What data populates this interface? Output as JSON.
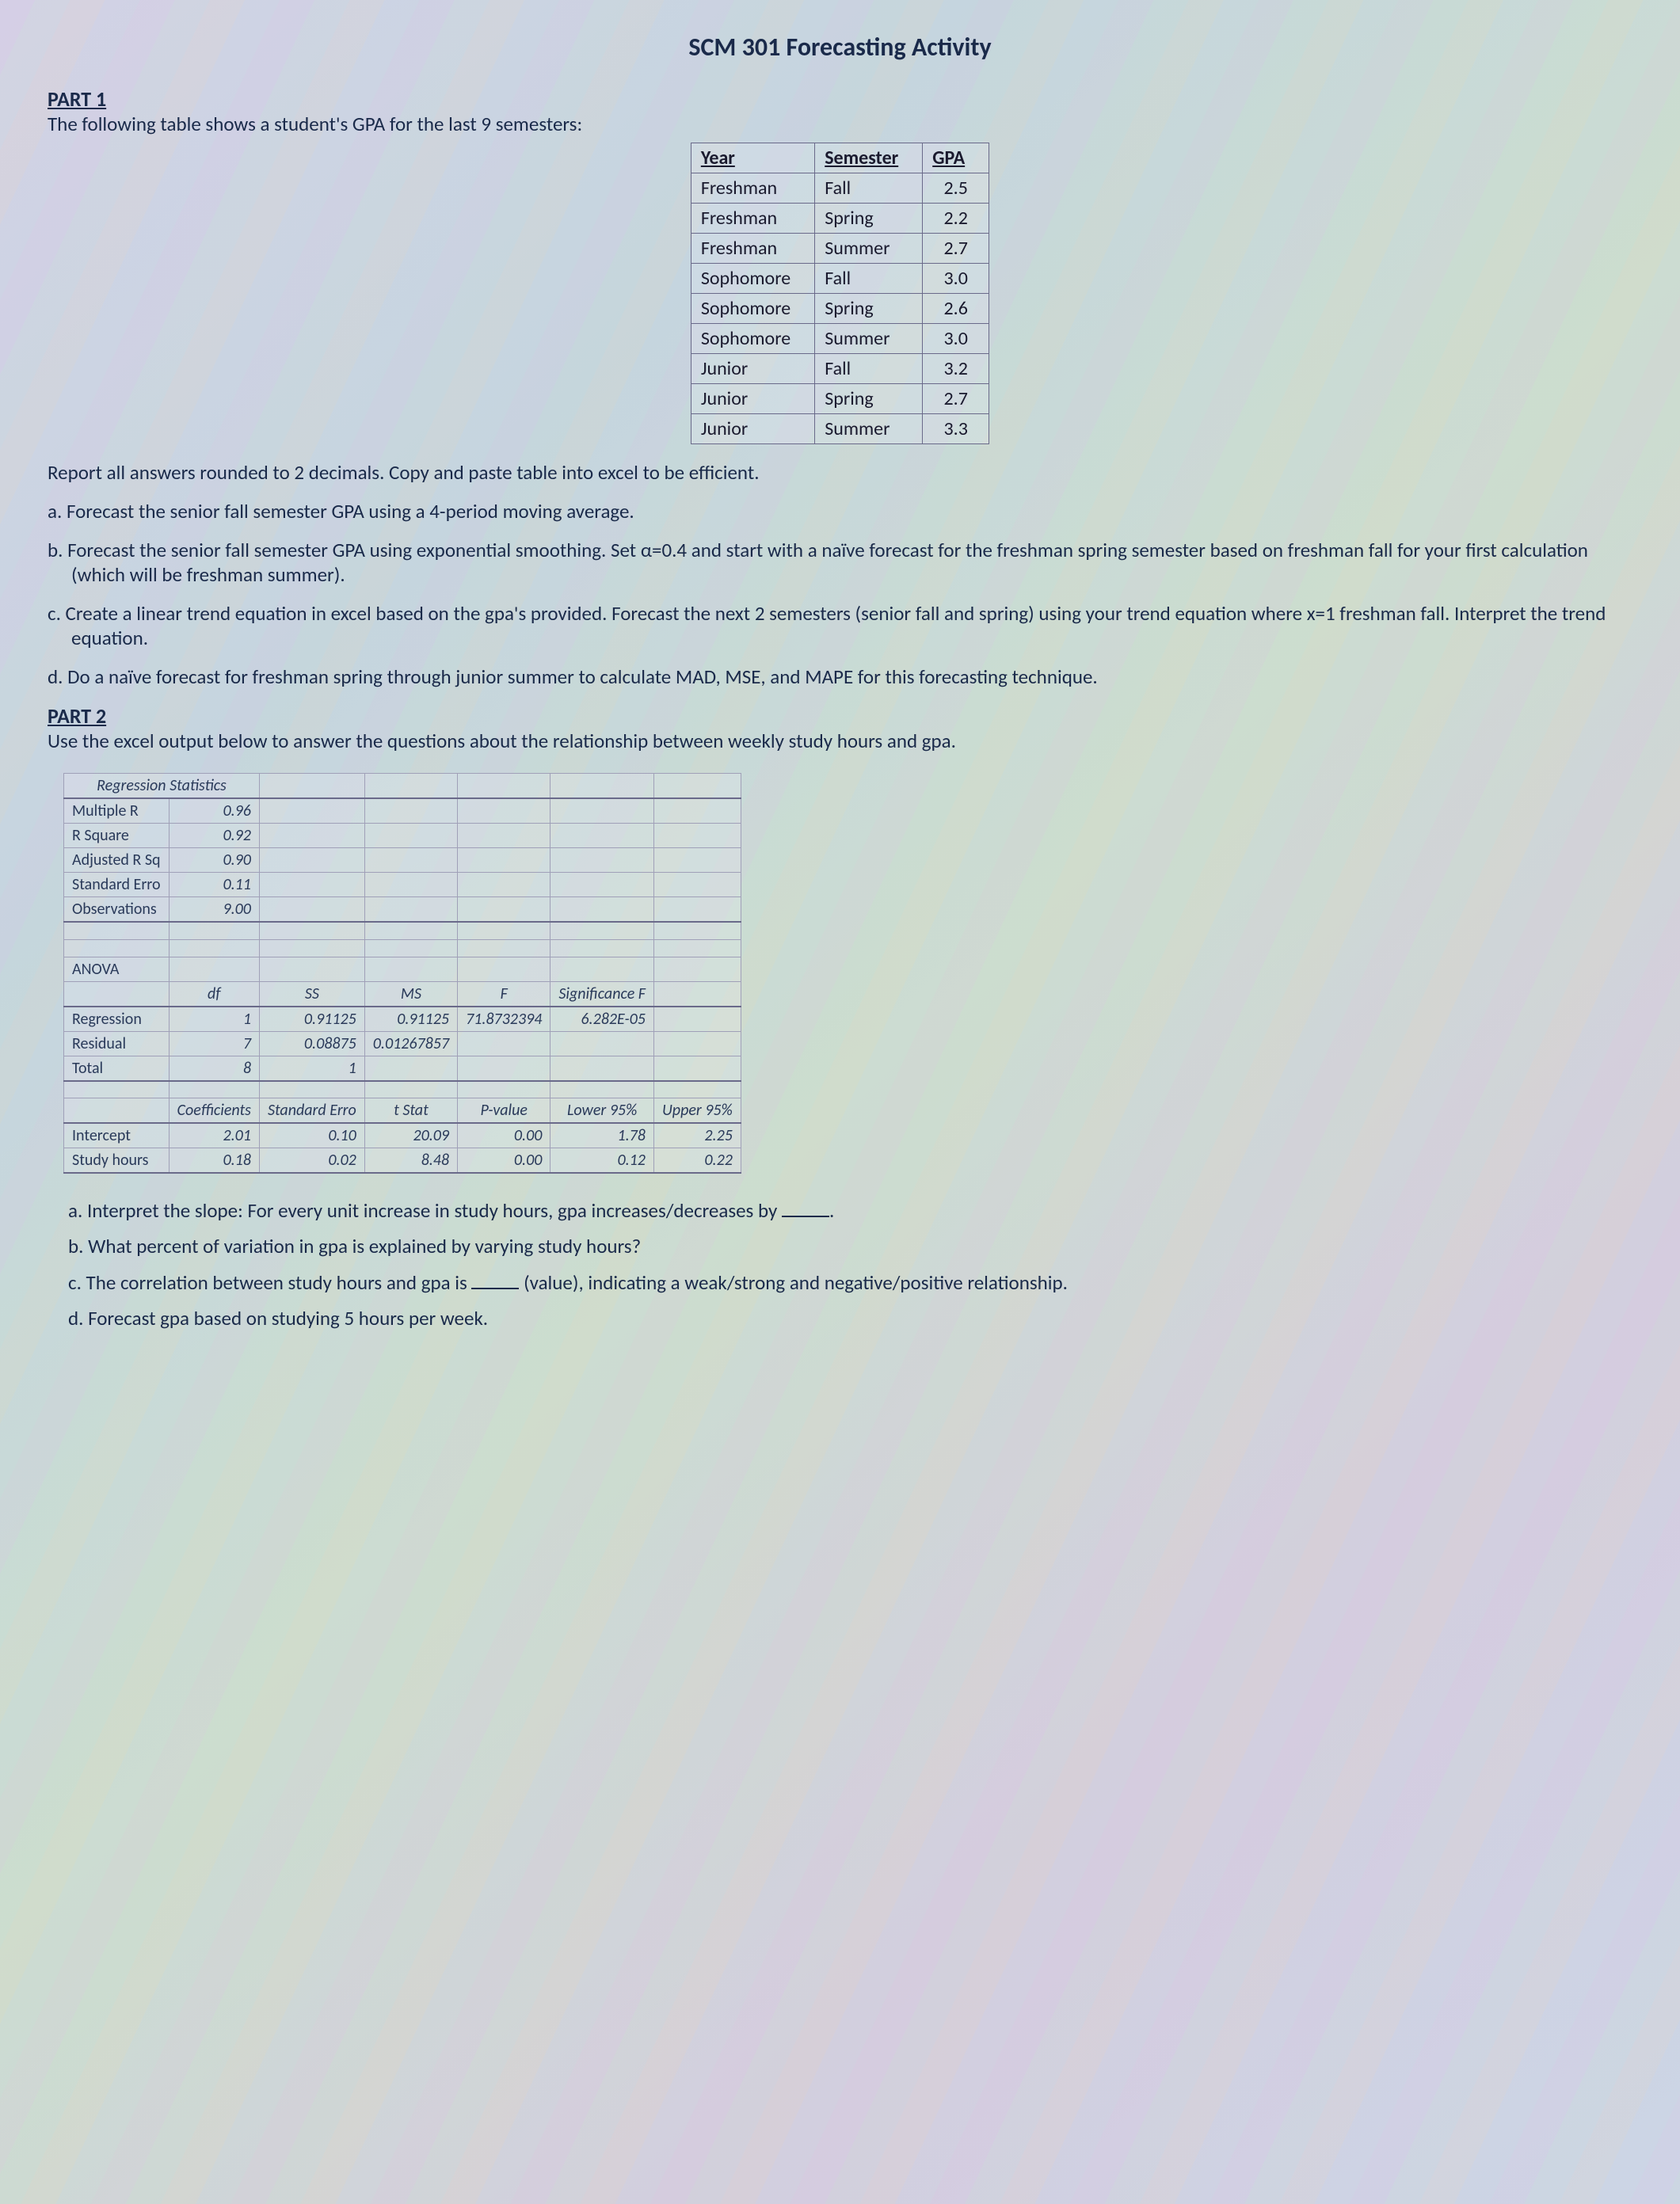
{
  "title": "SCM 301 Forecasting Activity",
  "part1": {
    "header": "PART 1",
    "intro": "The following table shows a student's GPA for the last 9 semesters:",
    "gpa_table": {
      "columns": [
        "Year",
        "Semester",
        "GPA"
      ],
      "rows": [
        [
          "Freshman",
          "Fall",
          "2.5"
        ],
        [
          "Freshman",
          "Spring",
          "2.2"
        ],
        [
          "Freshman",
          "Summer",
          "2.7"
        ],
        [
          "Sophomore",
          "Fall",
          "3.0"
        ],
        [
          "Sophomore",
          "Spring",
          "2.6"
        ],
        [
          "Sophomore",
          "Summer",
          "3.0"
        ],
        [
          "Junior",
          "Fall",
          "3.2"
        ],
        [
          "Junior",
          "Spring",
          "2.7"
        ],
        [
          "Junior",
          "Summer",
          "3.3"
        ]
      ]
    },
    "note": "Report all answers rounded to 2 decimals.  Copy and paste table into excel to be efficient.",
    "qa": "a. Forecast the senior fall semester GPA using a 4-period moving average.",
    "qb": "b. Forecast the senior fall semester GPA using exponential smoothing.  Set α=0.4 and start with a naïve forecast for the freshman spring semester based on freshman fall for your first calculation (which will be freshman summer).",
    "qc": "c. Create a linear trend equation in excel based on the gpa's provided.  Forecast the next 2 semesters (senior fall and spring) using your trend equation where x=1 freshman fall.   Interpret the trend equation.",
    "qd": "d. Do a naïve forecast for freshman spring through junior summer to calculate MAD, MSE, and MAPE for this forecasting technique."
  },
  "part2": {
    "header": "PART 2",
    "intro": "Use the excel output below to answer the questions about the relationship between weekly study hours and gpa.",
    "reg_stats": {
      "title": "Regression Statistics",
      "rows": [
        [
          "Multiple R",
          "0.96"
        ],
        [
          "R Square",
          "0.92"
        ],
        [
          "Adjusted R Sq",
          "0.90"
        ],
        [
          "Standard Erro",
          "0.11"
        ],
        [
          "Observations",
          "9.00"
        ]
      ]
    },
    "anova": {
      "title": "ANOVA",
      "columns": [
        "",
        "df",
        "SS",
        "MS",
        "F",
        "Significance F"
      ],
      "rows": [
        [
          "Regression",
          "1",
          "0.91125",
          "0.91125",
          "71.8732394",
          "6.282E-05"
        ],
        [
          "Residual",
          "7",
          "0.08875",
          "0.01267857",
          "",
          ""
        ],
        [
          "Total",
          "8",
          "1",
          "",
          "",
          ""
        ]
      ]
    },
    "coef": {
      "columns": [
        "",
        "Coefficients",
        "Standard Erro",
        "t Stat",
        "P-value",
        "Lower 95%",
        "Upper 95%"
      ],
      "rows": [
        [
          "Intercept",
          "2.01",
          "0.10",
          "20.09",
          "0.00",
          "1.78",
          "2.25"
        ],
        [
          "Study hours",
          "0.18",
          "0.02",
          "8.48",
          "0.00",
          "0.12",
          "0.22"
        ]
      ]
    },
    "qa_pre": "a.   Interpret the slope:  For every unit increase in study hours, gpa increases/decreases by ",
    "qa_post": ".",
    "qb": "b.   What percent of variation in gpa is explained by varying study hours?",
    "qc_pre": "c.   The correlation between study hours and gpa is ",
    "qc_post": " (value), indicating a weak/strong and negative/positive relationship.",
    "qd": "d.   Forecast gpa based on studying 5 hours per week."
  },
  "colors": {
    "text": "#1a2a4a",
    "border": "#6a6a8a",
    "grid": "#a0a0b8"
  }
}
